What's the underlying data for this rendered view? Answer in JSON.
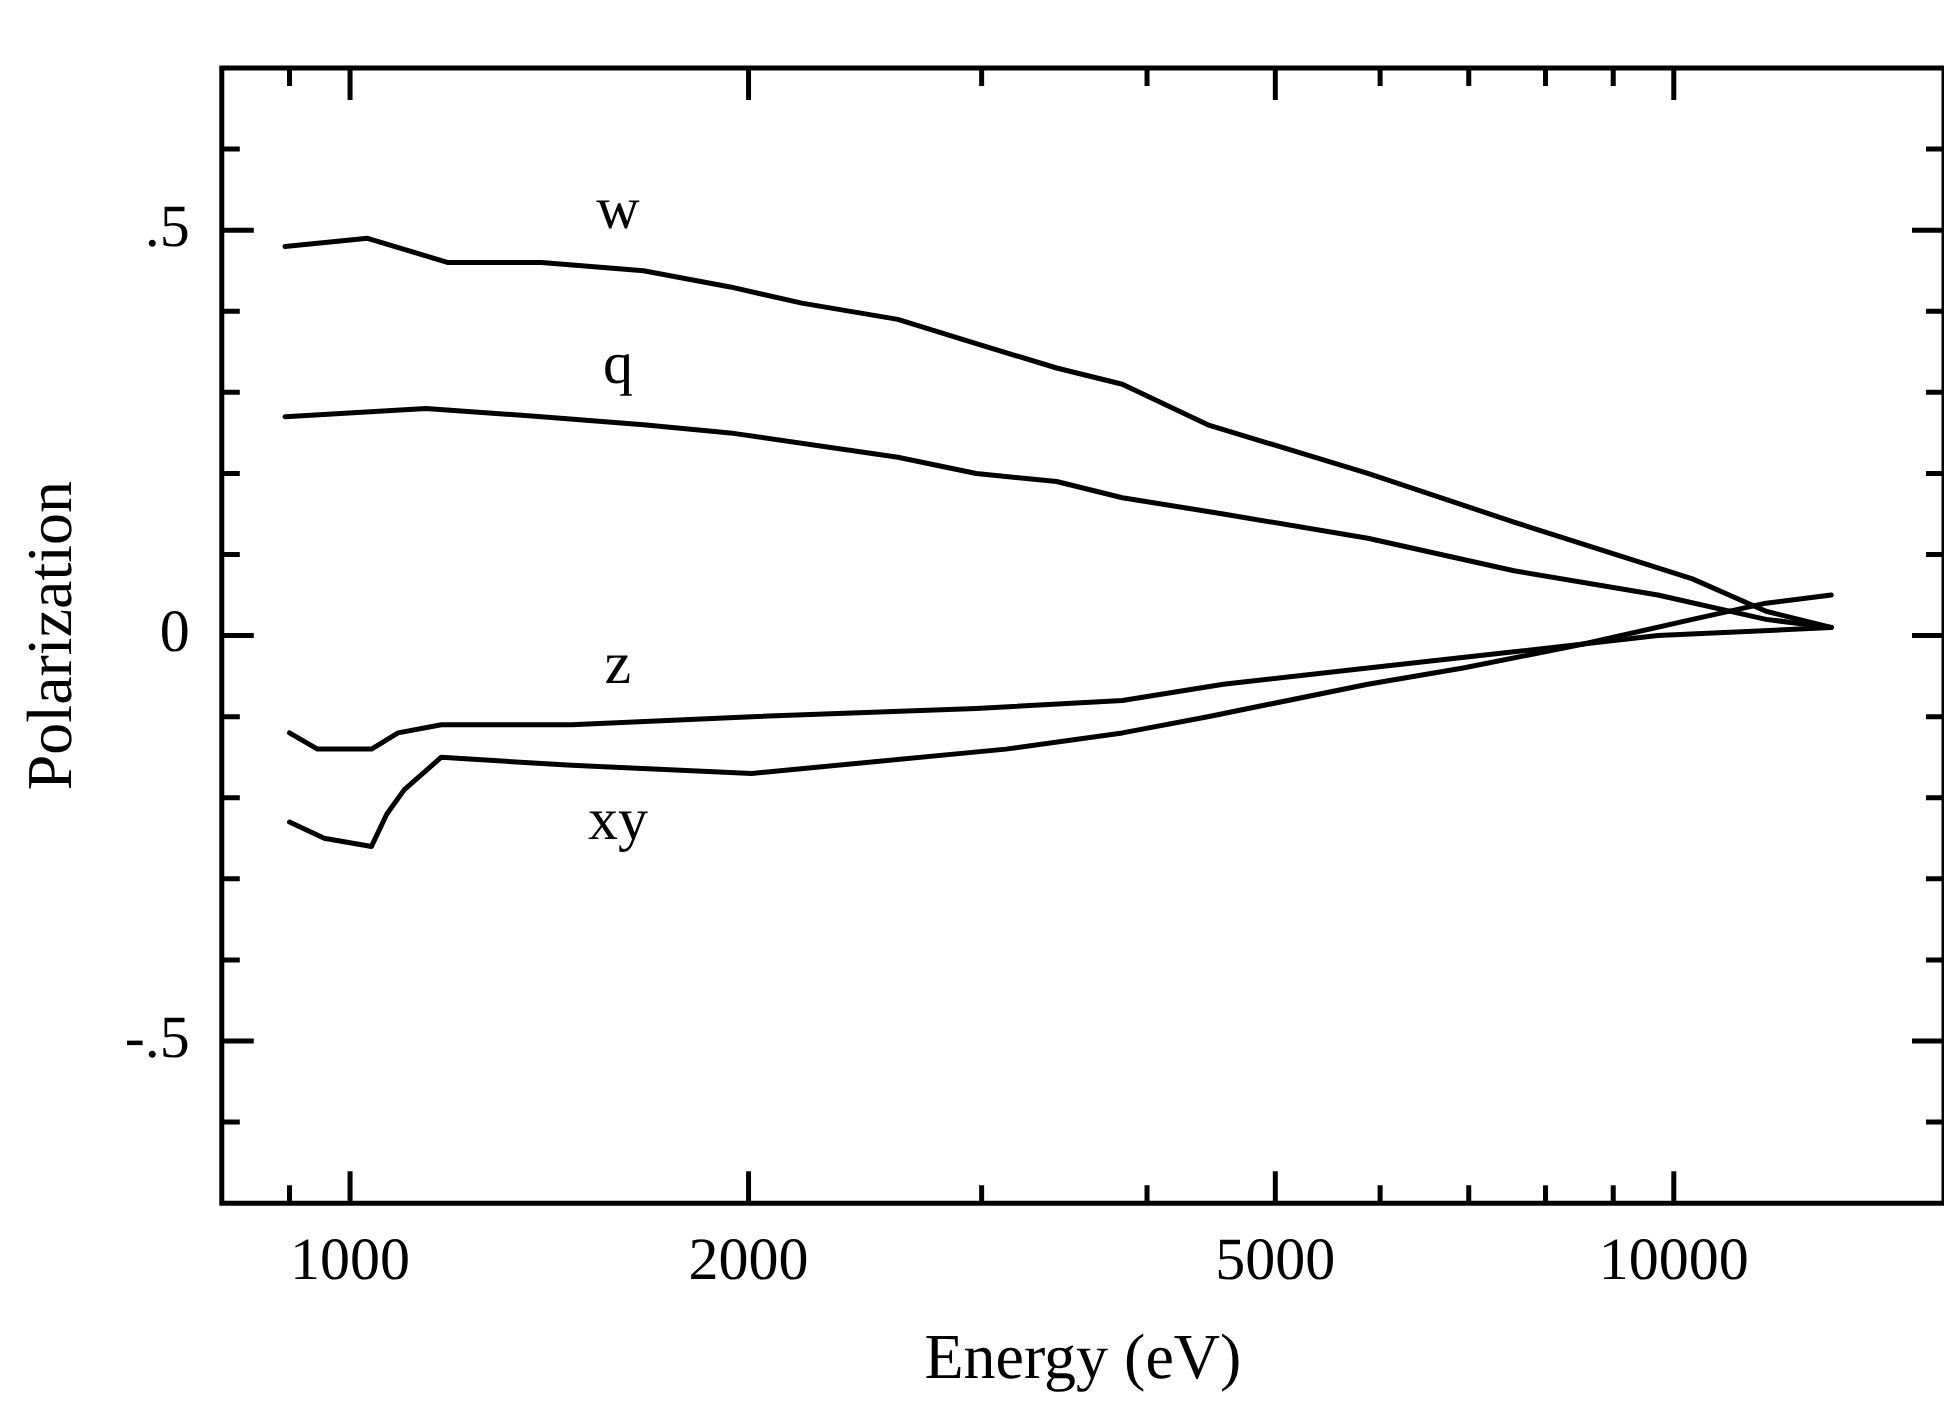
{
  "chart_data": {
    "type": "line",
    "xlabel": "Energy (eV)",
    "ylabel": "Polarization",
    "log": "x",
    "grid": false,
    "legend": false,
    "marker": "none",
    "line_style": "solid",
    "xlim": [
      800,
      16000
    ],
    "ylim": [
      -0.7,
      0.7
    ],
    "xticks": [
      {
        "value": 900,
        "label": null
      },
      {
        "value": 1000,
        "label": "1000"
      },
      2000,
      {
        "value": 3000,
        "label": null
      },
      {
        "value": 4000,
        "label": null
      },
      5000,
      {
        "value": 6000,
        "label": null
      },
      {
        "value": 7000,
        "label": null
      },
      {
        "value": 8000,
        "label": null
      },
      {
        "value": 9000,
        "label": null
      },
      10000
    ],
    "yticks": [
      {
        "value": -0.6,
        "label": null
      },
      {
        "value": -0.5,
        "label": "-.5"
      },
      {
        "value": -0.4,
        "label": null
      },
      {
        "value": -0.3,
        "label": null
      },
      {
        "value": -0.2,
        "label": null
      },
      {
        "value": -0.1,
        "label": null
      },
      0,
      {
        "value": 0.1,
        "label": null
      },
      {
        "value": 0.2,
        "label": null
      },
      {
        "value": 0.3,
        "label": null
      },
      {
        "value": 0.4,
        "label": null
      },
      {
        "value": 0.5,
        "label": ".5"
      },
      {
        "value": 0.6,
        "label": null
      }
    ],
    "series": [
      {
        "name": "w",
        "color": "#000000",
        "x": [
          893,
          1031,
          1186,
          1395,
          1666,
          1937,
          2194,
          2593,
          2972,
          3418,
          3832,
          4446,
          5873,
          7573,
          10330,
          11740,
          13150
        ],
        "values": [
          0.48,
          0.49,
          0.46,
          0.46,
          0.45,
          0.43,
          0.41,
          0.39,
          0.36,
          0.33,
          0.31,
          0.26,
          0.2,
          0.14,
          0.07,
          0.03,
          0.01
        ]
      },
      {
        "name": "q",
        "color": "#000000",
        "x": [
          893,
          1141,
          1395,
          1666,
          1937,
          2593,
          2972,
          3418,
          3832,
          4568,
          5873,
          7573,
          9726,
          11740,
          13150
        ],
        "values": [
          0.27,
          0.28,
          0.27,
          0.26,
          0.25,
          0.22,
          0.2,
          0.19,
          0.17,
          0.15,
          0.12,
          0.08,
          0.05,
          0.02,
          0.01
        ]
      },
      {
        "name": "z",
        "color": "#000000",
        "x": [
          900,
          945,
          1038,
          1087,
          1172,
          1470,
          2011,
          2972,
          3832,
          4568,
          5873,
          7573,
          9726,
          13150
        ],
        "values": [
          -0.12,
          -0.14,
          -0.14,
          -0.12,
          -0.11,
          -0.11,
          -0.1,
          -0.09,
          -0.08,
          -0.06,
          -0.04,
          -0.02,
          0,
          0.01
        ]
      },
      {
        "name": "xy",
        "color": "#000000",
        "x": [
          900,
          956,
          1038,
          1066,
          1099,
          1172,
          1470,
          2011,
          3129,
          3832,
          4446,
          5873,
          6931,
          8564,
          10330,
          11740,
          13150
        ],
        "values": [
          -0.23,
          -0.25,
          -0.26,
          -0.22,
          -0.19,
          -0.15,
          -0.16,
          -0.17,
          -0.14,
          -0.12,
          -0.1,
          -0.06,
          -0.04,
          -0.01,
          0.02,
          0.04,
          0.05
        ]
      }
    ]
  }
}
